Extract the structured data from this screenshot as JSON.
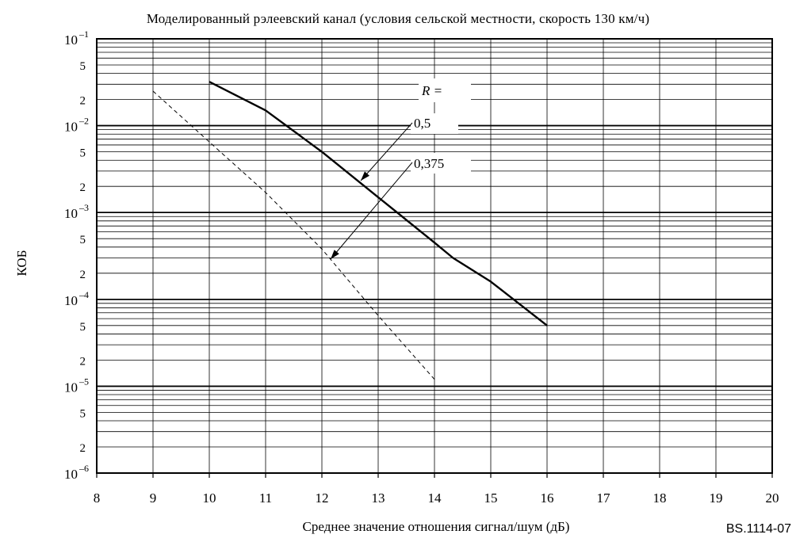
{
  "chart_data": {
    "type": "line",
    "title": "Моделированный рэлеевский канал (условия сельской местности, скорость 130 км/ч)",
    "xlabel": "Среднее значение отношения сигнал/шум (дБ)",
    "ylabel": "КОБ",
    "figure_id": "BS.1114-07",
    "xlim": [
      8,
      20
    ],
    "ylim": [
      1e-06,
      0.1
    ],
    "yscale": "log",
    "grid": true,
    "x_ticks": [
      "8",
      "9",
      "10",
      "11",
      "12",
      "13",
      "14",
      "15",
      "16",
      "17",
      "18",
      "19",
      "20"
    ],
    "y_decade_ticks": [
      {
        "base": "10",
        "exp": "–1",
        "value": 0.1
      },
      {
        "base": "10",
        "exp": "–2",
        "value": 0.01
      },
      {
        "base": "10",
        "exp": "–3",
        "value": 0.001
      },
      {
        "base": "10",
        "exp": "–4",
        "value": 0.0001
      },
      {
        "base": "10",
        "exp": "–5",
        "value": 1e-05
      },
      {
        "base": "10",
        "exp": "–6",
        "value": 1e-06
      }
    ],
    "y_minor_labels": [
      "5",
      "2"
    ],
    "legend_title": "R =",
    "series": [
      {
        "name": "0,5",
        "style": "solid",
        "x": [
          10,
          11,
          12,
          13,
          14,
          14.33,
          15,
          16
        ],
        "y": [
          0.032,
          0.015,
          0.005,
          0.0015,
          0.00045,
          0.0003,
          0.00016,
          5e-05
        ]
      },
      {
        "name": "0,375",
        "style": "dashed",
        "x": [
          9,
          10,
          11,
          12,
          13,
          14
        ],
        "y": [
          0.025,
          0.0065,
          0.0017,
          0.00038,
          6.5e-05,
          1.2e-05
        ]
      }
    ]
  }
}
